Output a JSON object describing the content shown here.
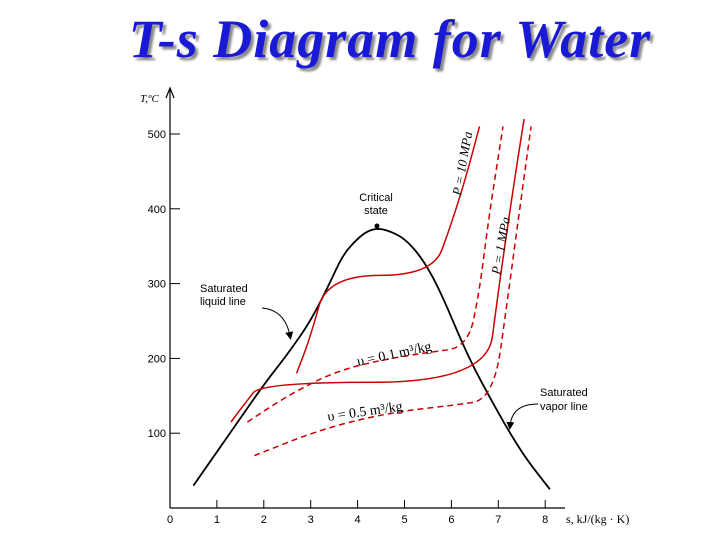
{
  "title": "T-s Diagram for Water",
  "axes": {
    "y_label": "T,ºC",
    "x_label": "s, kJ/(kg · K)",
    "y_ticks": [
      "100",
      "200",
      "300",
      "400",
      "500"
    ],
    "x_ticks": [
      "0",
      "1",
      "2",
      "3",
      "4",
      "5",
      "6",
      "7",
      "8"
    ]
  },
  "annotations": {
    "critical_state": [
      "Critical",
      "state"
    ],
    "saturated_liquid": [
      "Saturated",
      "liquid line"
    ],
    "saturated_vapor": [
      "Saturated",
      "vapor line"
    ],
    "pressure_high": "P = 10 MPa",
    "pressure_low": "P = 1 MPa",
    "volume_small": "υ = 0.1 m³/kg",
    "volume_large": "υ = 0.5 m³/kg"
  },
  "chart_data": {
    "type": "line",
    "xlim": [
      0,
      8.5
    ],
    "ylim": [
      0,
      520
    ],
    "series": [
      {
        "name": "",
        "style": "saturation dome",
        "points": [
          [
            0.5,
            30
          ],
          [
            1,
            75
          ],
          [
            1.5,
            120
          ],
          [
            2,
            165
          ],
          [
            2.5,
            205
          ],
          [
            3,
            250
          ],
          [
            3.4,
            300
          ],
          [
            3.7,
            340
          ],
          [
            4,
            360
          ],
          [
            4.2,
            370
          ],
          [
            4.43,
            374
          ],
          [
            4.7,
            370
          ],
          [
            5,
            360
          ],
          [
            5.3,
            340
          ],
          [
            5.6,
            310
          ],
          [
            5.9,
            270
          ],
          [
            6.2,
            225
          ],
          [
            6.5,
            185
          ],
          [
            6.8,
            150
          ],
          [
            7.2,
            105
          ],
          [
            7.6,
            65
          ],
          [
            8.1,
            25
          ]
        ]
      },
      {
        "name": "P = 10 MPa",
        "style": "solid",
        "points": [
          [
            2.7,
            180
          ],
          [
            3.0,
            230
          ],
          [
            3.36,
            311
          ],
          [
            5.6,
            311
          ],
          [
            6.0,
            380
          ],
          [
            6.3,
            440
          ],
          [
            6.6,
            510
          ]
        ]
      },
      {
        "name": "P = 1 MPa",
        "style": "solid",
        "points": [
          [
            1.3,
            115
          ],
          [
            1.6,
            140
          ],
          [
            1.95,
            168
          ],
          [
            6.75,
            168
          ],
          [
            7.0,
            290
          ],
          [
            7.3,
            420
          ],
          [
            7.55,
            520
          ]
        ]
      },
      {
        "name": "υ = 0.1 m³/kg",
        "style": "dashed",
        "points": [
          [
            1.65,
            115
          ],
          [
            2.5,
            150
          ],
          [
            3.5,
            182
          ],
          [
            4.5,
            198
          ],
          [
            5.5,
            208
          ],
          [
            6.35,
            215
          ],
          [
            6.6,
            290
          ],
          [
            6.8,
            390
          ],
          [
            7.1,
            510
          ]
        ]
      },
      {
        "name": "υ = 0.5 m³/kg",
        "style": "dashed",
        "points": [
          [
            1.8,
            70
          ],
          [
            3,
            100
          ],
          [
            4,
            118
          ],
          [
            5,
            130
          ],
          [
            6,
            137
          ],
          [
            6.9,
            145
          ],
          [
            7.2,
            280
          ],
          [
            7.5,
            420
          ],
          [
            7.7,
            510
          ]
        ]
      }
    ]
  }
}
